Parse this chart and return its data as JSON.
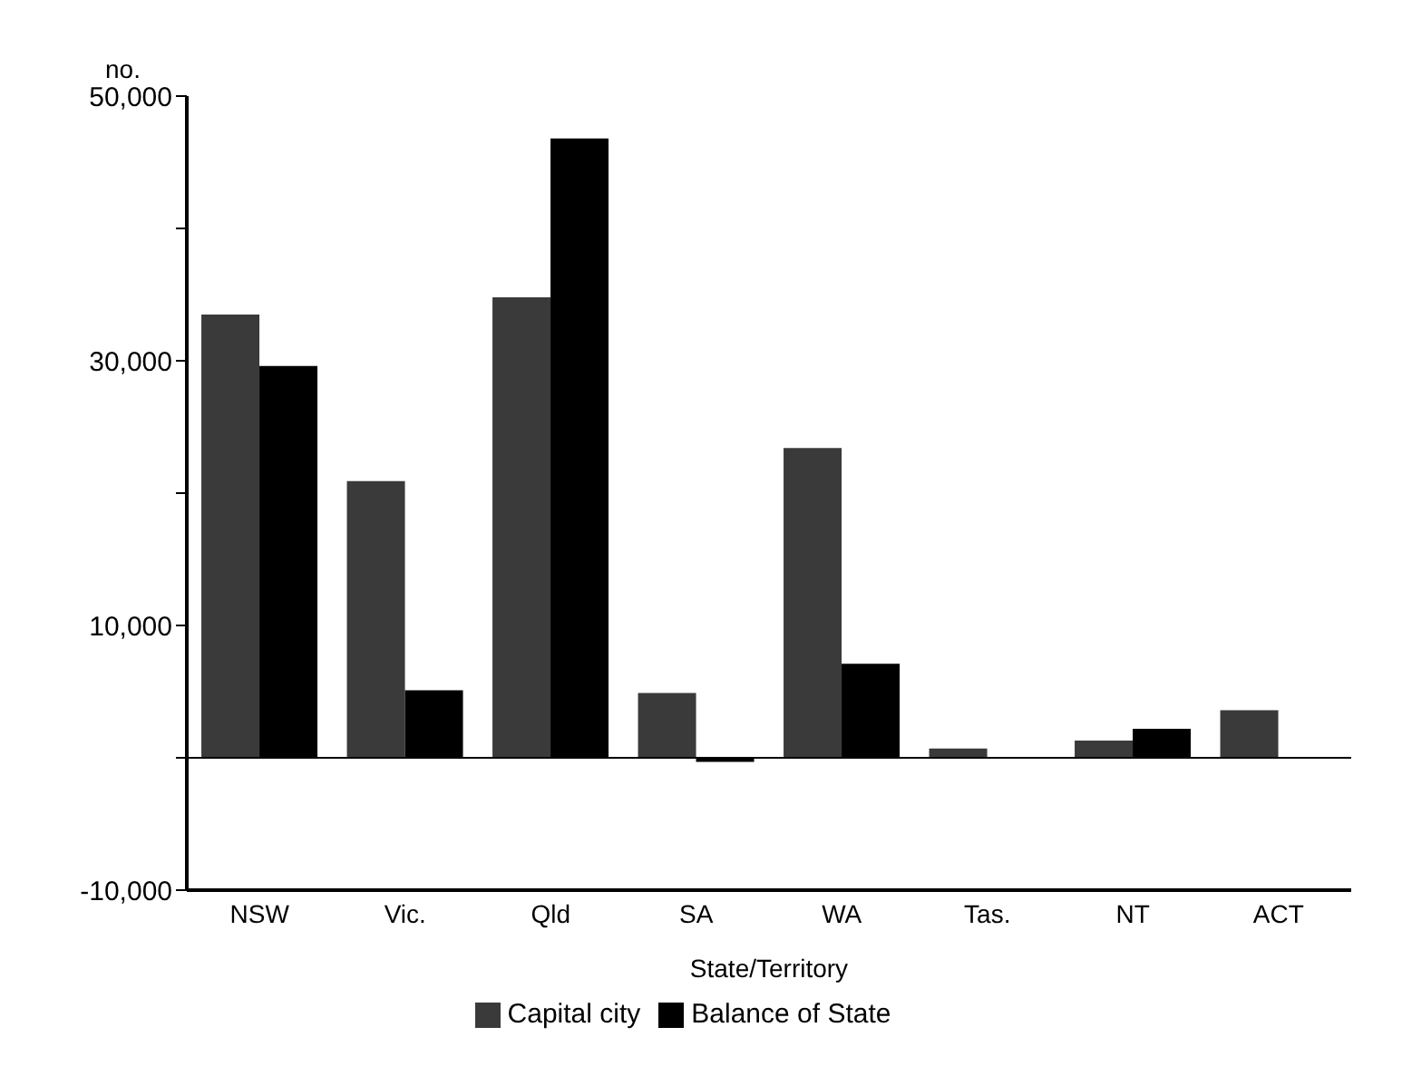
{
  "chart_data": {
    "type": "bar",
    "ylabel": "no.",
    "xlabel": "State/Territory",
    "categories": [
      "NSW",
      "Vic.",
      "Qld",
      "SA",
      "WA",
      "Tas.",
      "NT",
      "ACT"
    ],
    "series": [
      {
        "name": "Capital city",
        "color": "#3a3a3a",
        "values": [
          33500,
          20900,
          34800,
          4900,
          23400,
          700,
          1300,
          3600
        ]
      },
      {
        "name": "Balance of State",
        "color": "#000000",
        "values": [
          29600,
          5100,
          46800,
          -300,
          7100,
          0,
          2200,
          0
        ]
      }
    ],
    "ylim": [
      -10000,
      50000
    ],
    "yticks": [
      {
        "value": -10000,
        "label": "-10,000"
      },
      {
        "value": 0,
        "label": null
      },
      {
        "value": 10000,
        "label": "10,000"
      },
      {
        "value": 20000,
        "label": null
      },
      {
        "value": 30000,
        "label": "30,000"
      },
      {
        "value": 40000,
        "label": null
      },
      {
        "value": 50000,
        "label": "50,000"
      }
    ],
    "legend": "bottom"
  }
}
